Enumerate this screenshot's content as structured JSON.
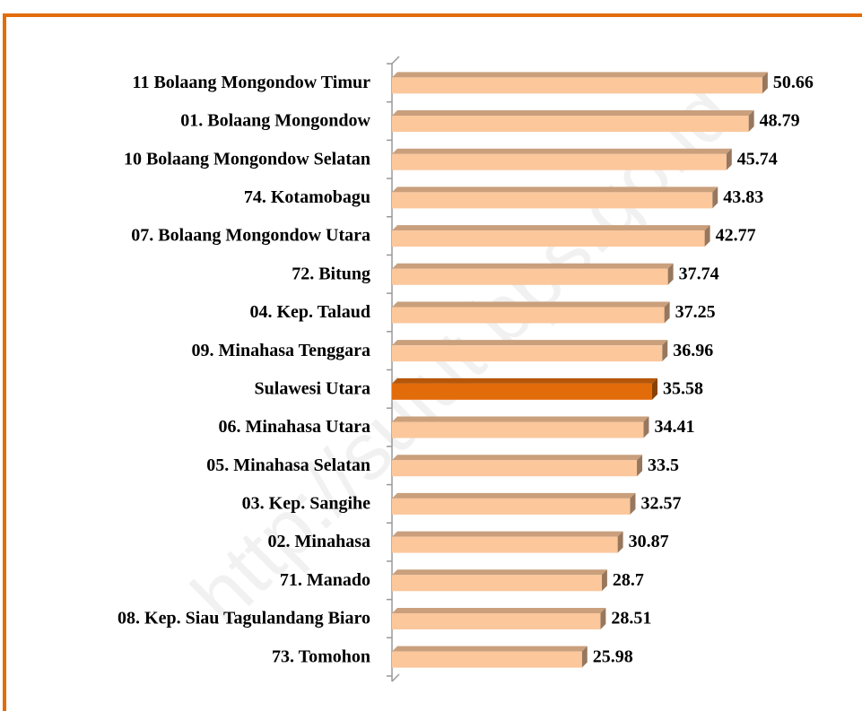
{
  "chart_data": {
    "type": "barh",
    "categories": [
      "11  Bolaang Mongondow Timur",
      "01.  Bolaang Mongondow",
      "10  Bolaang Mongondow Selatan",
      "74.  Kotamobagu",
      "07. Bolaang Mongondow Utara",
      "72.  Bitung",
      "04.  Kep. Talaud",
      "09. Minahasa Tenggara",
      "Sulawesi Utara",
      "06.  Minahasa Utara",
      "05.  Minahasa Selatan",
      "03.  Kep. Sangihe",
      "02.  Minahasa",
      "71.  Manado",
      "08. Kep. Siau Tagulandang Biaro",
      "73.  Tomohon"
    ],
    "values": [
      50.66,
      48.79,
      45.74,
      43.83,
      42.77,
      37.74,
      37.25,
      36.96,
      35.58,
      34.41,
      33.5,
      32.57,
      30.87,
      28.7,
      28.51,
      25.98
    ],
    "colors": [
      "#fbc79b",
      "#fbc79b",
      "#fbc79b",
      "#fbc79b",
      "#fbc79b",
      "#fbc79b",
      "#fbc79b",
      "#fbc79b",
      "#e36c0a",
      "#fbc79b",
      "#fbc79b",
      "#fbc79b",
      "#fbc79b",
      "#fbc79b",
      "#fbc79b",
      "#fbc79b"
    ],
    "xlim": [
      0,
      60
    ],
    "watermark": "http://sulut.bps.go.id"
  }
}
